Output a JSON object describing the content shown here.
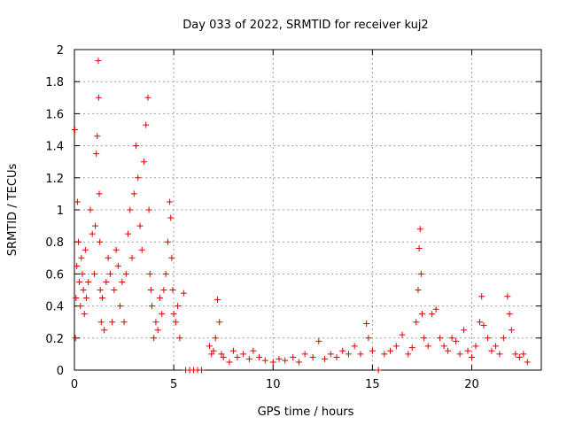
{
  "chart_data": {
    "type": "scatter",
    "title": "Day 033 of 2022, SRMTID for receiver kuj2",
    "xlabel": "GPS time / hours",
    "ylabel": "SRMTID / TECUs",
    "xlim": [
      0,
      23.5
    ],
    "ylim": [
      0,
      2
    ],
    "xticks": [
      0,
      5,
      10,
      15,
      20
    ],
    "xtick_labels": [
      "0",
      "5",
      "10",
      "15",
      "20"
    ],
    "yticks": [
      0,
      0.2,
      0.4,
      0.6,
      0.8,
      1,
      1.2,
      1.4,
      1.6,
      1.8,
      2
    ],
    "ytick_labels": [
      "0",
      "0.2",
      "0.4",
      "0.6",
      "0.8",
      "1",
      "1.2",
      "1.4",
      "1.6",
      "1.8",
      "2"
    ],
    "grid": true,
    "marker": "+",
    "colors": {
      "series": "#dd0000",
      "grid": "#a0a0a0",
      "axis": "#000000"
    },
    "series": [
      {
        "name": "SRMTID",
        "x": [
          0.02,
          0.05,
          0.08,
          0.12,
          0.15,
          0.2,
          0.25,
          0.3,
          0.35,
          0.4,
          0.45,
          0.5,
          0.55,
          0.6,
          0.7,
          0.8,
          0.9,
          1.0,
          1.05,
          1.1,
          1.15,
          1.2,
          1.22,
          1.25,
          1.28,
          1.3,
          1.35,
          1.4,
          1.5,
          1.6,
          1.7,
          1.8,
          1.9,
          2.0,
          2.1,
          2.2,
          2.3,
          2.4,
          2.5,
          2.6,
          2.7,
          2.8,
          2.9,
          3.0,
          3.1,
          3.2,
          3.3,
          3.4,
          3.5,
          3.6,
          3.7,
          3.75,
          3.8,
          3.85,
          3.9,
          4.0,
          4.1,
          4.2,
          4.3,
          4.4,
          4.5,
          4.6,
          4.7,
          4.8,
          4.85,
          4.9,
          4.95,
          5.0,
          5.1,
          5.2,
          5.3,
          5.5,
          5.6,
          5.8,
          6.0,
          6.2,
          6.4,
          6.8,
          6.9,
          7.0,
          7.1,
          7.2,
          7.3,
          7.4,
          7.5,
          7.8,
          8.0,
          8.2,
          8.5,
          8.8,
          9.0,
          9.3,
          9.6,
          10.0,
          10.3,
          10.6,
          11.0,
          11.3,
          11.6,
          12.0,
          12.3,
          12.6,
          12.9,
          13.2,
          13.5,
          13.8,
          14.1,
          14.4,
          14.7,
          14.8,
          15.0,
          15.3,
          15.6,
          15.9,
          16.2,
          16.5,
          16.8,
          17.0,
          17.2,
          17.3,
          17.35,
          17.4,
          17.45,
          17.5,
          17.6,
          17.8,
          18.0,
          18.2,
          18.4,
          18.6,
          18.8,
          19.0,
          19.2,
          19.4,
          19.6,
          19.8,
          20.0,
          20.2,
          20.4,
          20.5,
          20.6,
          20.8,
          21.0,
          21.2,
          21.4,
          21.6,
          21.8,
          21.9,
          22.0,
          22.2,
          22.4,
          22.6,
          22.8
        ],
        "y": [
          1.5,
          0.2,
          0.45,
          0.65,
          1.05,
          0.8,
          0.55,
          0.4,
          0.7,
          0.6,
          0.5,
          0.35,
          0.75,
          0.45,
          0.55,
          1.0,
          0.85,
          0.6,
          0.9,
          1.35,
          1.46,
          1.93,
          1.7,
          1.1,
          0.8,
          0.5,
          0.3,
          0.45,
          0.25,
          0.55,
          0.7,
          0.6,
          0.3,
          0.5,
          0.75,
          0.65,
          0.4,
          0.55,
          0.3,
          0.6,
          0.85,
          1.0,
          0.7,
          1.1,
          1.4,
          1.2,
          0.9,
          0.75,
          1.3,
          1.53,
          1.7,
          1.0,
          0.6,
          0.5,
          0.4,
          0.2,
          0.3,
          0.25,
          0.45,
          0.35,
          0.5,
          0.6,
          0.8,
          1.05,
          0.95,
          0.7,
          0.5,
          0.35,
          0.3,
          0.4,
          0.2,
          0.48,
          0.0,
          0.0,
          0.0,
          0.0,
          0.0,
          0.15,
          0.1,
          0.12,
          0.2,
          0.44,
          0.3,
          0.1,
          0.08,
          0.05,
          0.12,
          0.08,
          0.1,
          0.07,
          0.12,
          0.08,
          0.06,
          0.05,
          0.07,
          0.06,
          0.08,
          0.05,
          0.1,
          0.08,
          0.18,
          0.07,
          0.1,
          0.08,
          0.12,
          0.1,
          0.15,
          0.1,
          0.29,
          0.2,
          0.12,
          0.0,
          0.1,
          0.12,
          0.15,
          0.22,
          0.1,
          0.14,
          0.3,
          0.5,
          0.76,
          0.88,
          0.6,
          0.35,
          0.2,
          0.15,
          0.35,
          0.38,
          0.2,
          0.15,
          0.12,
          0.2,
          0.18,
          0.1,
          0.25,
          0.12,
          0.08,
          0.15,
          0.3,
          0.46,
          0.28,
          0.2,
          0.12,
          0.15,
          0.1,
          0.2,
          0.46,
          0.35,
          0.25,
          0.1,
          0.08,
          0.1,
          0.05
        ]
      }
    ]
  }
}
